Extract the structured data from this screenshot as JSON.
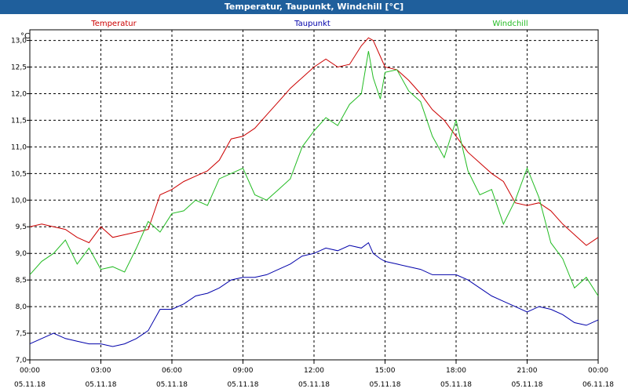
{
  "window": {
    "title": "Temperatur, Taupunkt, Windchill [°C]"
  },
  "chart_data": {
    "type": "line",
    "ylabel": "°C",
    "ylim": [
      7.0,
      13.2
    ],
    "yticks": [
      7.0,
      7.5,
      8.0,
      8.5,
      9.0,
      9.5,
      10.0,
      10.5,
      11.0,
      11.5,
      12.0,
      12.5,
      13.0
    ],
    "ytick_labels": [
      "7,0",
      "7,5",
      "8,0",
      "8,5",
      "9,0",
      "9,5",
      "10,0",
      "10,5",
      "11,0",
      "11,5",
      "12,0",
      "12,5",
      "13,0"
    ],
    "xlim": [
      0,
      24
    ],
    "xticks": [
      {
        "time": "00:00",
        "date": "05.11.18",
        "h": 0
      },
      {
        "time": "03:00",
        "date": "05.11.18",
        "h": 3
      },
      {
        "time": "06:00",
        "date": "05.11.18",
        "h": 6
      },
      {
        "time": "09:00",
        "date": "05.11.18",
        "h": 9
      },
      {
        "time": "12:00",
        "date": "05.11.18",
        "h": 12
      },
      {
        "time": "15:00",
        "date": "05.11.18",
        "h": 15
      },
      {
        "time": "18:00",
        "date": "05.11.18",
        "h": 18
      },
      {
        "time": "21:00",
        "date": "05.11.18",
        "h": 21
      },
      {
        "time": "00:00",
        "date": "06.11.18",
        "h": 24
      }
    ],
    "grid": true,
    "series": [
      {
        "name": "Temperatur",
        "color": "#cc0000",
        "x": [
          0,
          0.5,
          1,
          1.5,
          2,
          2.5,
          3,
          3.5,
          4,
          4.5,
          5,
          5.5,
          6,
          6.5,
          7,
          7.5,
          8,
          8.5,
          9,
          9.5,
          10,
          10.5,
          11,
          11.5,
          12,
          12.5,
          13,
          13.5,
          14,
          14.3,
          14.5,
          14.8,
          15,
          15.5,
          16,
          16.5,
          17,
          17.5,
          18,
          18.5,
          19,
          19.5,
          20,
          20.5,
          21,
          21.5,
          22,
          22.5,
          23,
          23.5,
          24
        ],
        "values": [
          9.5,
          9.55,
          9.5,
          9.45,
          9.3,
          9.2,
          9.5,
          9.3,
          9.35,
          9.4,
          9.45,
          10.1,
          10.2,
          10.35,
          10.45,
          10.55,
          10.75,
          11.15,
          11.2,
          11.35,
          11.6,
          11.85,
          12.1,
          12.3,
          12.5,
          12.65,
          12.5,
          12.55,
          12.9,
          13.05,
          13.0,
          12.7,
          12.5,
          12.45,
          12.25,
          12.0,
          11.7,
          11.5,
          11.2,
          10.9,
          10.7,
          10.5,
          10.35,
          9.95,
          9.9,
          9.95,
          9.8,
          9.55,
          9.35,
          9.15,
          9.3
        ]
      },
      {
        "name": "Taupunkt",
        "color": "#0000aa",
        "x": [
          0,
          0.5,
          1,
          1.5,
          2,
          2.5,
          3,
          3.5,
          4,
          4.5,
          5,
          5.5,
          6,
          6.5,
          7,
          7.5,
          8,
          8.5,
          9,
          9.5,
          10,
          10.5,
          11,
          11.5,
          12,
          12.5,
          13,
          13.5,
          14,
          14.3,
          14.5,
          14.8,
          15,
          15.5,
          16,
          16.5,
          17,
          17.5,
          18,
          18.5,
          19,
          19.5,
          20,
          20.5,
          21,
          21.5,
          22,
          22.5,
          23,
          23.5,
          24
        ],
        "values": [
          7.3,
          7.4,
          7.5,
          7.4,
          7.35,
          7.3,
          7.3,
          7.25,
          7.3,
          7.4,
          7.55,
          7.95,
          7.95,
          8.05,
          8.2,
          8.25,
          8.35,
          8.5,
          8.55,
          8.55,
          8.6,
          8.7,
          8.8,
          8.95,
          9.0,
          9.1,
          9.05,
          9.15,
          9.1,
          9.2,
          9.0,
          8.9,
          8.85,
          8.8,
          8.75,
          8.7,
          8.6,
          8.6,
          8.6,
          8.5,
          8.35,
          8.2,
          8.1,
          8.0,
          7.9,
          8.0,
          7.95,
          7.85,
          7.7,
          7.65,
          7.75
        ]
      },
      {
        "name": "Windchill",
        "color": "#22bb22",
        "x": [
          0,
          0.5,
          1,
          1.5,
          2,
          2.5,
          3,
          3.5,
          4,
          4.5,
          5,
          5.5,
          6,
          6.5,
          7,
          7.5,
          8,
          8.5,
          9,
          9.5,
          10,
          10.5,
          11,
          11.5,
          12,
          12.5,
          13,
          13.5,
          14,
          14.3,
          14.5,
          14.8,
          15,
          15.5,
          16,
          16.5,
          17,
          17.5,
          18,
          18.5,
          19,
          19.5,
          20,
          20.5,
          21,
          21.5,
          22,
          22.5,
          23,
          23.5,
          24
        ],
        "values": [
          8.6,
          8.85,
          9.0,
          9.25,
          8.8,
          9.1,
          8.7,
          8.75,
          8.65,
          9.1,
          9.6,
          9.4,
          9.75,
          9.8,
          10.0,
          9.9,
          10.4,
          10.5,
          10.6,
          10.1,
          10.0,
          10.2,
          10.4,
          11.0,
          11.3,
          11.55,
          11.4,
          11.8,
          12.0,
          12.8,
          12.3,
          11.9,
          12.4,
          12.45,
          12.05,
          11.85,
          11.2,
          10.8,
          11.5,
          10.55,
          10.1,
          10.2,
          9.55,
          10.0,
          10.6,
          10.05,
          9.2,
          8.9,
          8.35,
          8.55,
          8.2
        ]
      }
    ]
  }
}
